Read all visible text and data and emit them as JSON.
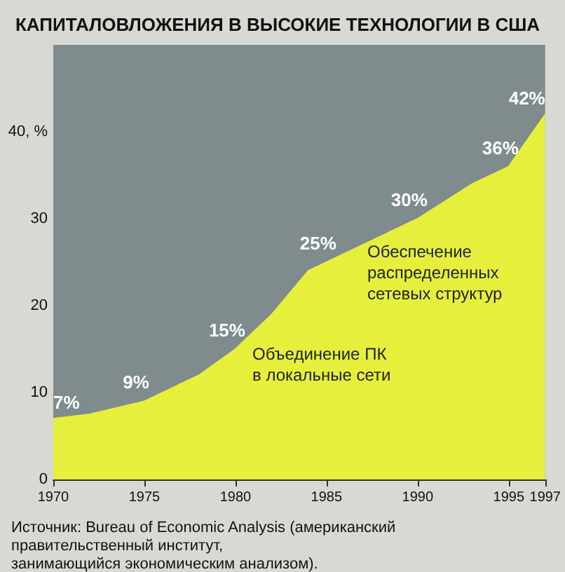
{
  "chart_data": {
    "type": "area",
    "title": "КАПИТАЛОВЛОЖЕНИЯ В ВЫСОКИЕ ТЕХНОЛОГИИ В США",
    "x": [
      1970,
      1972,
      1975,
      1978,
      1980,
      1982,
      1984,
      1985,
      1987,
      1990,
      1993,
      1995,
      1997
    ],
    "series": [
      {
        "color": "#e6f03c",
        "values": [
          7,
          7.5,
          9,
          12,
          15,
          19,
          24,
          25,
          27,
          30,
          34,
          36,
          42
        ],
        "value_labels": [
          "7%",
          null,
          "9%",
          null,
          "15%",
          null,
          null,
          "25%",
          null,
          "30%",
          null,
          "36%",
          "42%"
        ]
      }
    ],
    "xlim": [
      1970,
      1997
    ],
    "xticks": [
      1970,
      1975,
      1980,
      1985,
      1990,
      1995,
      1997
    ],
    "ylim": [
      0,
      50
    ],
    "yticks": [
      0,
      10,
      20,
      30,
      {
        "value": 40,
        "label": "40, %"
      }
    ],
    "annotations": [
      "Обеспечение распределенных сетевых структур",
      "Объединение ПК в локальные сети",
      "Источник: Bureau of Economic Analysis (американский правительственный институт, занимающийся экономическим анализом)."
    ]
  }
}
